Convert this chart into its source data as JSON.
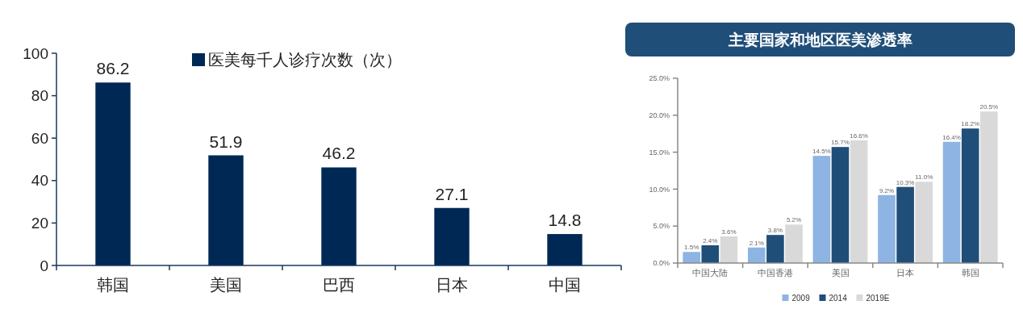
{
  "chart_data": [
    {
      "type": "bar",
      "categories": [
        "韩国",
        "美国",
        "巴西",
        "日本",
        "中国"
      ],
      "series": [
        {
          "name": "医美每千人诊疗次数（次）",
          "color": "#002855",
          "values": [
            86.2,
            51.9,
            46.2,
            27.1,
            14.8
          ]
        }
      ],
      "ylim": [
        0,
        100
      ],
      "yticks": [
        0,
        20,
        40,
        60,
        80,
        100
      ],
      "data_labels": true,
      "legend": "top",
      "grid": false
    },
    {
      "type": "bar",
      "title": "主要国家和地区医美渗透率",
      "categories": [
        "中国大陆",
        "中国香港",
        "美国",
        "日本",
        "韩国"
      ],
      "series": [
        {
          "name": "2009",
          "color": "#8db4e2",
          "values": [
            1.5,
            2.1,
            14.5,
            9.2,
            16.4
          ],
          "value_labels": [
            "1.5%",
            "2.1%",
            "14.5%",
            "9.2%",
            "16.4%"
          ]
        },
        {
          "name": "2014",
          "color": "#1f4e79",
          "values": [
            2.4,
            3.8,
            15.7,
            10.3,
            18.2
          ],
          "value_labels": [
            "2.4%",
            "3.8%",
            "15.7%",
            "10.3%",
            "18.2%"
          ]
        },
        {
          "name": "2019E",
          "color": "#d9d9d9",
          "values": [
            3.6,
            5.2,
            16.6,
            11.0,
            20.5
          ],
          "value_labels": [
            "3.6%",
            "5.2%",
            "16.6%",
            "11.0%",
            "20.5%"
          ]
        }
      ],
      "ylim": [
        0,
        25
      ],
      "yticks": [
        {
          "value": 0,
          "label": "0.0%"
        },
        {
          "value": 5,
          "label": "5.0%"
        },
        {
          "value": 10,
          "label": "10.0%"
        },
        {
          "value": 15,
          "label": "15.0%"
        },
        {
          "value": 20,
          "label": "20.0%"
        },
        {
          "value": 25,
          "label": "25.0%"
        }
      ],
      "legend": "bottom",
      "grid": false
    }
  ]
}
